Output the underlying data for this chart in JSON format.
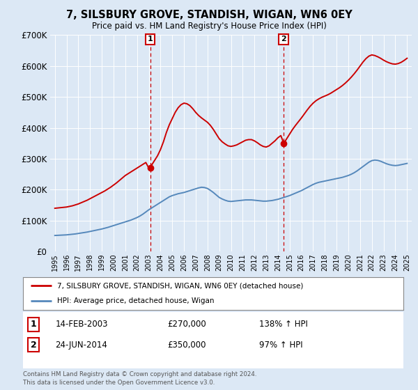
{
  "title": "7, SILSBURY GROVE, STANDISH, WIGAN, WN6 0EY",
  "subtitle": "Price paid vs. HM Land Registry's House Price Index (HPI)",
  "red_color": "#cc0000",
  "blue_color": "#5588bb",
  "sale1_date": 2003.12,
  "sale1_price": 270000,
  "sale2_date": 2014.48,
  "sale2_price": 350000,
  "legend_line1": "7, SILSBURY GROVE, STANDISH, WIGAN, WN6 0EY (detached house)",
  "legend_line2": "HPI: Average price, detached house, Wigan",
  "table_row1": [
    "1",
    "14-FEB-2003",
    "£270,000",
    "138% ↑ HPI"
  ],
  "table_row2": [
    "2",
    "24-JUN-2014",
    "£350,000",
    "97% ↑ HPI"
  ],
  "footer": "Contains HM Land Registry data © Crown copyright and database right 2024.\nThis data is licensed under the Open Government Licence v3.0.",
  "plot_bg": "#dce8f5",
  "fig_bg": "#dce8f5",
  "bottom_bg": "#ffffff",
  "ylim": [
    0,
    700000
  ],
  "yticks": [
    0,
    100000,
    200000,
    300000,
    400000,
    500000,
    600000,
    700000
  ],
  "ytick_labels": [
    "£0",
    "£100K",
    "£200K",
    "£300K",
    "£400K",
    "£500K",
    "£600K",
    "£700K"
  ],
  "hpi_years": [
    1995.0,
    1995.25,
    1995.5,
    1995.75,
    1996.0,
    1996.25,
    1996.5,
    1996.75,
    1997.0,
    1997.25,
    1997.5,
    1997.75,
    1998.0,
    1998.25,
    1998.5,
    1998.75,
    1999.0,
    1999.25,
    1999.5,
    1999.75,
    2000.0,
    2000.25,
    2000.5,
    2000.75,
    2001.0,
    2001.25,
    2001.5,
    2001.75,
    2002.0,
    2002.25,
    2002.5,
    2002.75,
    2003.0,
    2003.25,
    2003.5,
    2003.75,
    2004.0,
    2004.25,
    2004.5,
    2004.75,
    2005.0,
    2005.25,
    2005.5,
    2005.75,
    2006.0,
    2006.25,
    2006.5,
    2006.75,
    2007.0,
    2007.25,
    2007.5,
    2007.75,
    2008.0,
    2008.25,
    2008.5,
    2008.75,
    2009.0,
    2009.25,
    2009.5,
    2009.75,
    2010.0,
    2010.25,
    2010.5,
    2010.75,
    2011.0,
    2011.25,
    2011.5,
    2011.75,
    2012.0,
    2012.25,
    2012.5,
    2012.75,
    2013.0,
    2013.25,
    2013.5,
    2013.75,
    2014.0,
    2014.25,
    2014.5,
    2014.75,
    2015.0,
    2015.25,
    2015.5,
    2015.75,
    2016.0,
    2016.25,
    2016.5,
    2016.75,
    2017.0,
    2017.25,
    2017.5,
    2017.75,
    2018.0,
    2018.25,
    2018.5,
    2018.75,
    2019.0,
    2019.25,
    2019.5,
    2019.75,
    2020.0,
    2020.25,
    2020.5,
    2020.75,
    2021.0,
    2021.25,
    2021.5,
    2021.75,
    2022.0,
    2022.25,
    2022.5,
    2022.75,
    2023.0,
    2023.25,
    2023.5,
    2023.75,
    2024.0,
    2024.25,
    2024.5,
    2024.75,
    2025.0
  ],
  "hpi_values": [
    52000,
    52500,
    53000,
    53500,
    54000,
    55000,
    56000,
    57000,
    58500,
    60000,
    61500,
    63000,
    65000,
    67000,
    69000,
    71000,
    73000,
    75500,
    78000,
    81000,
    84000,
    87000,
    90000,
    93000,
    96000,
    99000,
    102000,
    106000,
    110000,
    115000,
    121000,
    128000,
    135000,
    141000,
    147000,
    153000,
    159000,
    165000,
    171000,
    177000,
    181000,
    184000,
    187000,
    189000,
    191000,
    194000,
    197000,
    200000,
    203000,
    206000,
    208000,
    207000,
    204000,
    198000,
    191000,
    183000,
    175000,
    170000,
    166000,
    163000,
    162000,
    163000,
    164000,
    165000,
    166000,
    167000,
    167000,
    167000,
    166000,
    165000,
    164000,
    163000,
    163000,
    164000,
    165000,
    167000,
    169000,
    172000,
    175000,
    178000,
    181000,
    185000,
    189000,
    193000,
    197000,
    202000,
    207000,
    212000,
    217000,
    221000,
    224000,
    226000,
    228000,
    230000,
    232000,
    234000,
    236000,
    238000,
    240000,
    243000,
    246000,
    250000,
    255000,
    261000,
    268000,
    275000,
    282000,
    289000,
    294000,
    296000,
    295000,
    292000,
    288000,
    284000,
    281000,
    279000,
    278000,
    279000,
    281000,
    283000,
    285000
  ],
  "red_years": [
    1995.0,
    1995.25,
    1995.5,
    1995.75,
    1996.0,
    1996.25,
    1996.5,
    1996.75,
    1997.0,
    1997.25,
    1997.5,
    1997.75,
    1998.0,
    1998.25,
    1998.5,
    1998.75,
    1999.0,
    1999.25,
    1999.5,
    1999.75,
    2000.0,
    2000.25,
    2000.5,
    2000.75,
    2001.0,
    2001.25,
    2001.5,
    2001.75,
    2002.0,
    2002.25,
    2002.5,
    2002.75,
    2003.0,
    2003.25,
    2003.5,
    2003.75,
    2004.0,
    2004.25,
    2004.5,
    2004.75,
    2005.0,
    2005.25,
    2005.5,
    2005.75,
    2006.0,
    2006.25,
    2006.5,
    2006.75,
    2007.0,
    2007.25,
    2007.5,
    2007.75,
    2008.0,
    2008.25,
    2008.5,
    2008.75,
    2009.0,
    2009.25,
    2009.5,
    2009.75,
    2010.0,
    2010.25,
    2010.5,
    2010.75,
    2011.0,
    2011.25,
    2011.5,
    2011.75,
    2012.0,
    2012.25,
    2012.5,
    2012.75,
    2013.0,
    2013.25,
    2013.5,
    2013.75,
    2014.0,
    2014.25,
    2014.5,
    2014.75,
    2015.0,
    2015.25,
    2015.5,
    2015.75,
    2016.0,
    2016.25,
    2016.5,
    2016.75,
    2017.0,
    2017.25,
    2017.5,
    2017.75,
    2018.0,
    2018.25,
    2018.5,
    2018.75,
    2019.0,
    2019.25,
    2019.5,
    2019.75,
    2020.0,
    2020.25,
    2020.5,
    2020.75,
    2021.0,
    2021.25,
    2021.5,
    2021.75,
    2022.0,
    2022.25,
    2022.5,
    2022.75,
    2023.0,
    2023.25,
    2023.5,
    2023.75,
    2024.0,
    2024.25,
    2024.5,
    2024.75,
    2025.0
  ],
  "red_values": [
    140000,
    141000,
    142000,
    143000,
    144000,
    146000,
    148000,
    151000,
    154000,
    158000,
    162000,
    166000,
    171000,
    176000,
    181000,
    186000,
    191000,
    196000,
    202000,
    208000,
    215000,
    222000,
    230000,
    238000,
    246000,
    252000,
    258000,
    264000,
    270000,
    276000,
    282000,
    288000,
    270000,
    280000,
    295000,
    310000,
    330000,
    355000,
    385000,
    410000,
    430000,
    450000,
    465000,
    475000,
    480000,
    478000,
    472000,
    462000,
    450000,
    440000,
    432000,
    425000,
    418000,
    408000,
    395000,
    380000,
    365000,
    355000,
    348000,
    342000,
    340000,
    342000,
    345000,
    350000,
    355000,
    360000,
    362000,
    362000,
    358000,
    352000,
    345000,
    340000,
    338000,
    342000,
    350000,
    358000,
    368000,
    375000,
    350000,
    365000,
    380000,
    395000,
    408000,
    420000,
    432000,
    445000,
    458000,
    470000,
    480000,
    488000,
    494000,
    499000,
    503000,
    507000,
    512000,
    518000,
    524000,
    530000,
    537000,
    545000,
    554000,
    564000,
    575000,
    587000,
    600000,
    613000,
    624000,
    632000,
    636000,
    634000,
    630000,
    625000,
    619000,
    614000,
    610000,
    607000,
    606000,
    608000,
    612000,
    618000,
    625000
  ]
}
